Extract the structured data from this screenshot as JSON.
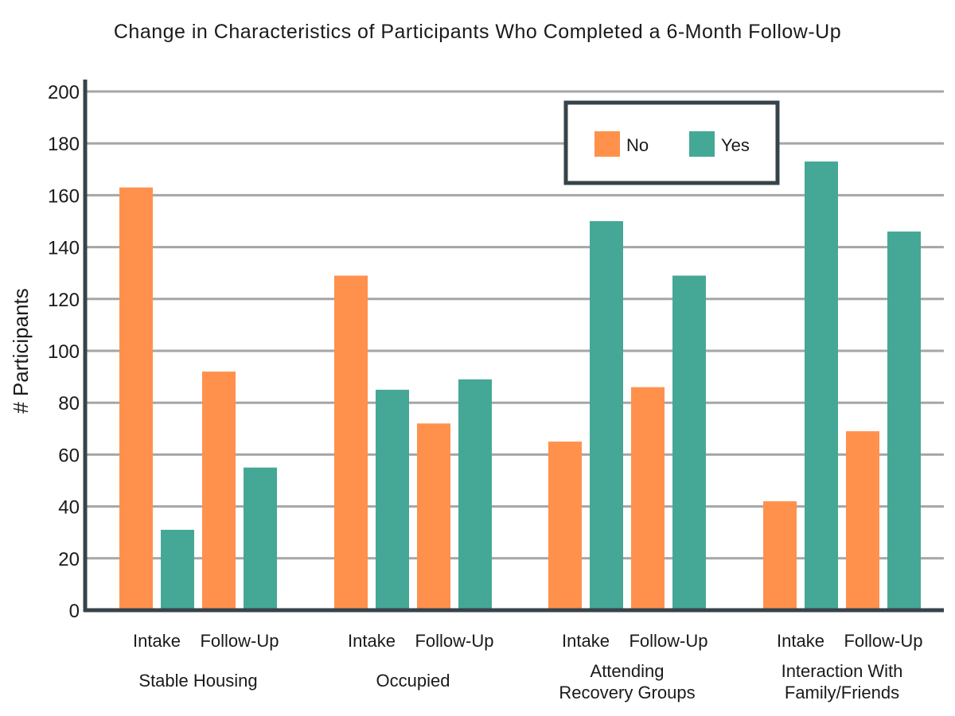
{
  "chart_data": {
    "type": "bar",
    "title": "Change in Characteristics of Participants Who Completed a 6-Month Follow-Up",
    "ylabel": "# Participants",
    "ylim": [
      0,
      200
    ],
    "yticks": [
      0,
      20,
      40,
      60,
      80,
      100,
      120,
      140,
      160,
      180,
      200
    ],
    "grid": true,
    "legend_position": "top-right",
    "groups": [
      {
        "label": [
          "Stable Housing"
        ]
      },
      {
        "label": [
          "Occupied"
        ]
      },
      {
        "label": [
          "Attending",
          "Recovery Groups"
        ]
      },
      {
        "label": [
          "Interaction With",
          "Family/Friends"
        ]
      }
    ],
    "time_points": [
      "Intake",
      "Follow-Up"
    ],
    "series": [
      {
        "name": "No",
        "color": "#FF914D",
        "values": [
          [
            163,
            92
          ],
          [
            129,
            72
          ],
          [
            65,
            86
          ],
          [
            42,
            69
          ]
        ]
      },
      {
        "name": "Yes",
        "color": "#45A896",
        "values": [
          [
            31,
            55
          ],
          [
            85,
            89
          ],
          [
            150,
            129
          ],
          [
            173,
            146
          ]
        ]
      }
    ],
    "colors": {
      "axis": "#37434a",
      "grid": "#a6a6a6",
      "legend_border": "#37434a"
    }
  }
}
